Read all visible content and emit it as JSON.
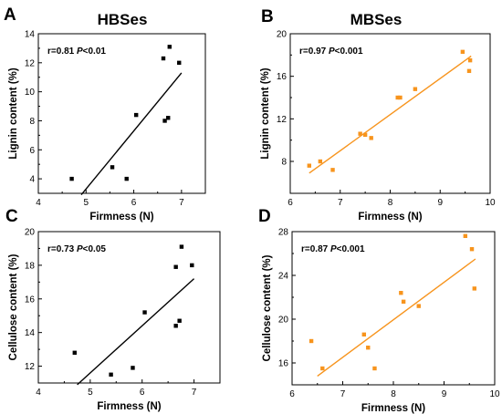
{
  "chart_data": [
    {
      "panel": "A",
      "type": "scatter",
      "title": "HBSes",
      "xlabel": "Firmness (N)",
      "ylabel": "Lignin content (%)",
      "xlim": [
        4,
        7.5
      ],
      "ylim": [
        3,
        14
      ],
      "xticks": [
        "4",
        "5",
        "6",
        "7"
      ],
      "yticks": [
        "4",
        "6",
        "8",
        "10",
        "12",
        "14"
      ],
      "stat_r": "r=0.81",
      "stat_p_label": "P",
      "stat_p_value": "<0.01",
      "color": "#000000",
      "points": [
        [
          4.7,
          4.0
        ],
        [
          5.55,
          4.8
        ],
        [
          5.85,
          4.0
        ],
        [
          6.05,
          8.4
        ],
        [
          6.65,
          8.0
        ],
        [
          6.72,
          8.2
        ],
        [
          6.62,
          12.3
        ],
        [
          6.75,
          13.1
        ],
        [
          6.95,
          12.0
        ]
      ],
      "fit": [
        [
          4.9,
          2.9
        ],
        [
          7.0,
          11.3
        ]
      ]
    },
    {
      "panel": "B",
      "type": "scatter",
      "title": "MBSes",
      "xlabel": "Firmness (N)",
      "ylabel": "Lignin content (%)",
      "xlim": [
        6,
        10
      ],
      "ylim": [
        5,
        20
      ],
      "xticks": [
        "6",
        "7",
        "8",
        "9",
        "10"
      ],
      "yticks": [
        "8",
        "12",
        "16",
        "20"
      ],
      "stat_r": "r=0.97",
      "stat_p_label": "P",
      "stat_p_value": "<0.001",
      "color": "#f7941d",
      "points": [
        [
          6.38,
          7.6
        ],
        [
          6.6,
          8.0
        ],
        [
          6.85,
          7.2
        ],
        [
          7.4,
          10.6
        ],
        [
          7.5,
          10.5
        ],
        [
          7.62,
          10.2
        ],
        [
          8.15,
          14.0
        ],
        [
          8.2,
          14.0
        ],
        [
          8.5,
          14.8
        ],
        [
          9.45,
          18.3
        ],
        [
          9.6,
          17.5
        ],
        [
          9.58,
          16.5
        ]
      ],
      "fit": [
        [
          6.38,
          6.9
        ],
        [
          9.62,
          17.9
        ]
      ]
    },
    {
      "panel": "C",
      "type": "scatter",
      "title": "",
      "xlabel": "Firmness (N)",
      "ylabel": "Cellulose content (%)",
      "xlim": [
        4,
        7.5
      ],
      "ylim": [
        11,
        20
      ],
      "xticks": [
        "4",
        "5",
        "6",
        "7"
      ],
      "yticks": [
        "12",
        "14",
        "16",
        "18",
        "20"
      ],
      "stat_r": "r=0.73",
      "stat_p_label": "P",
      "stat_p_value": "<0.05",
      "color": "#000000",
      "points": [
        [
          4.7,
          12.8
        ],
        [
          5.4,
          11.5
        ],
        [
          5.82,
          11.9
        ],
        [
          6.05,
          15.2
        ],
        [
          6.65,
          17.9
        ],
        [
          6.65,
          14.4
        ],
        [
          6.72,
          14.7
        ],
        [
          6.76,
          19.1
        ],
        [
          6.96,
          18.0
        ]
      ],
      "fit": [
        [
          4.75,
          10.9
        ],
        [
          7.0,
          17.2
        ]
      ]
    },
    {
      "panel": "D",
      "type": "scatter",
      "title": "",
      "xlabel": "Firmness (N)",
      "ylabel": "Cellulose content (%)",
      "xlim": [
        6,
        10
      ],
      "ylim": [
        14,
        28
      ],
      "xticks": [
        "6",
        "7",
        "8",
        "9",
        "10"
      ],
      "yticks": [
        "16",
        "20",
        "24",
        "28"
      ],
      "stat_r": "r=0.87",
      "stat_p_label": "P",
      "stat_p_value": "<0.001",
      "color": "#f7941d",
      "points": [
        [
          6.38,
          18.0
        ],
        [
          6.6,
          15.5
        ],
        [
          7.42,
          18.6
        ],
        [
          7.5,
          17.4
        ],
        [
          7.63,
          15.5
        ],
        [
          8.15,
          22.4
        ],
        [
          8.2,
          21.6
        ],
        [
          8.5,
          21.2
        ],
        [
          9.42,
          27.6
        ],
        [
          9.55,
          26.4
        ],
        [
          9.6,
          22.8
        ]
      ],
      "fit": [
        [
          6.5,
          14.8
        ],
        [
          9.62,
          25.5
        ]
      ]
    }
  ]
}
